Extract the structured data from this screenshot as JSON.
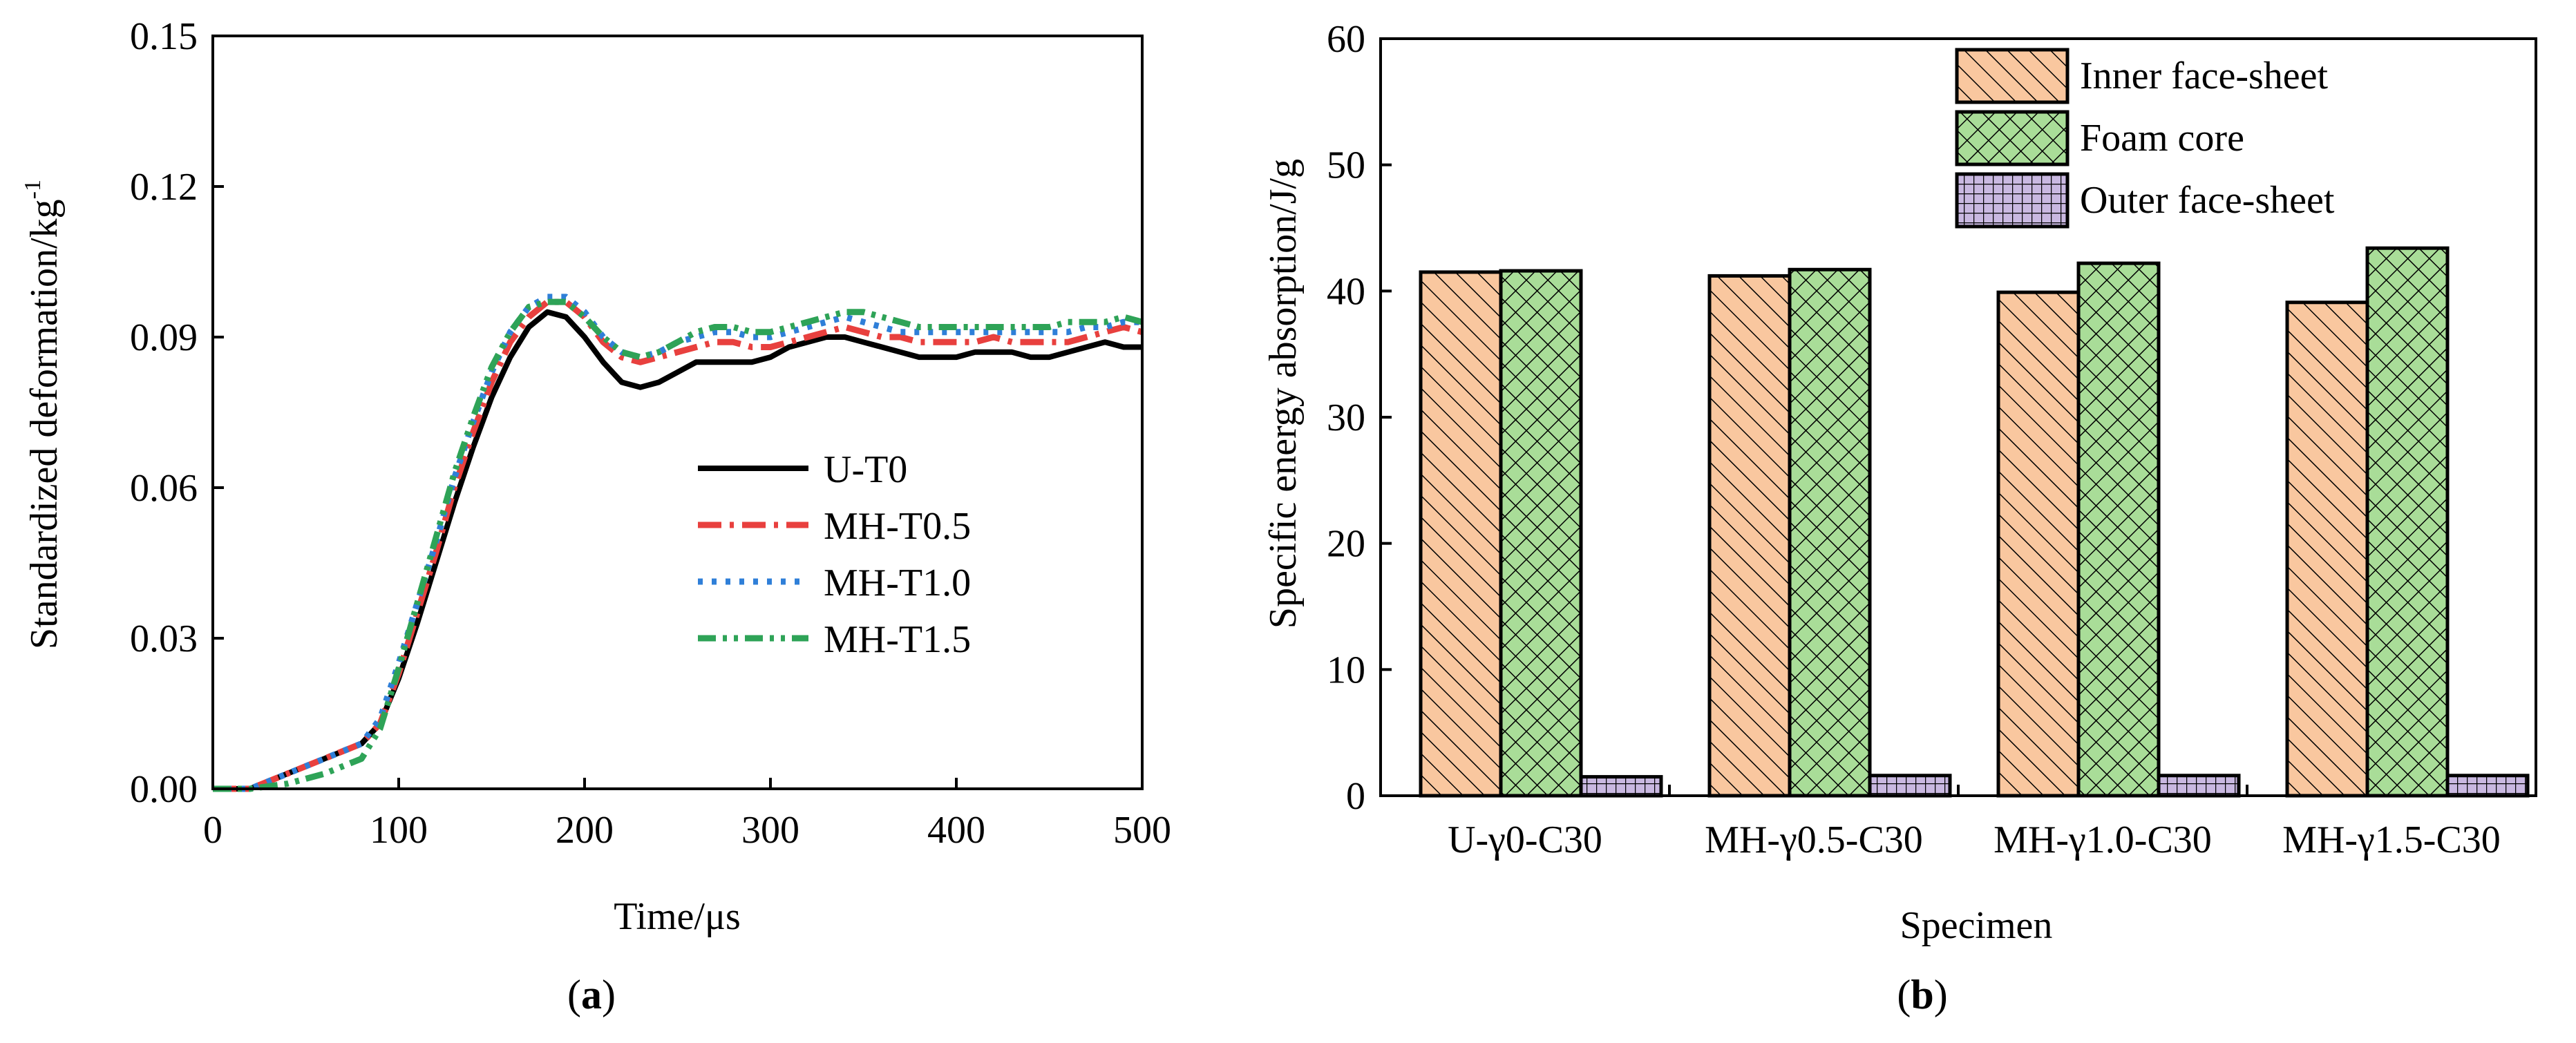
{
  "chart_data": [
    {
      "type": "line",
      "panel_label": "a",
      "xlabel": "Time/μs",
      "ylabel": "Standardized deformation/kg",
      "ylabel_superscript": "-1",
      "xlim": [
        0,
        500
      ],
      "ylim": [
        0,
        0.15
      ],
      "xticks": [
        0,
        100,
        200,
        300,
        400,
        500
      ],
      "yticks": [
        "0.00",
        "0.03",
        "0.06",
        "0.09",
        "0.12",
        "0.15"
      ],
      "grid": false,
      "legend_position": "center-right",
      "series": [
        {
          "name": "U-T0",
          "color": "#000000",
          "style": "solid",
          "x": [
            0,
            20,
            40,
            60,
            80,
            90,
            100,
            110,
            120,
            130,
            140,
            150,
            160,
            170,
            180,
            190,
            200,
            210,
            220,
            230,
            240,
            250,
            260,
            270,
            280,
            290,
            300,
            310,
            320,
            330,
            340,
            350,
            360,
            370,
            380,
            390,
            400,
            410,
            420,
            430,
            440,
            450,
            460,
            470,
            480,
            490,
            500
          ],
          "y": [
            0,
            0,
            0.003,
            0.006,
            0.009,
            0.013,
            0.022,
            0.033,
            0.045,
            0.057,
            0.068,
            0.078,
            0.086,
            0.092,
            0.095,
            0.094,
            0.09,
            0.085,
            0.081,
            0.08,
            0.081,
            0.083,
            0.085,
            0.085,
            0.085,
            0.085,
            0.086,
            0.088,
            0.089,
            0.09,
            0.09,
            0.089,
            0.088,
            0.087,
            0.086,
            0.086,
            0.086,
            0.087,
            0.087,
            0.087,
            0.086,
            0.086,
            0.087,
            0.088,
            0.089,
            0.088,
            0.088
          ]
        },
        {
          "name": "MH-T0.5",
          "color": "#e8403e",
          "style": "dash-dot",
          "x": [
            0,
            20,
            40,
            60,
            80,
            90,
            100,
            110,
            120,
            130,
            140,
            150,
            160,
            170,
            180,
            190,
            200,
            210,
            220,
            230,
            240,
            250,
            260,
            270,
            280,
            290,
            300,
            310,
            320,
            330,
            340,
            350,
            360,
            370,
            380,
            390,
            400,
            410,
            420,
            430,
            440,
            450,
            460,
            470,
            480,
            490,
            500
          ],
          "y": [
            0,
            0,
            0.003,
            0.006,
            0.009,
            0.013,
            0.023,
            0.035,
            0.047,
            0.06,
            0.071,
            0.081,
            0.089,
            0.094,
            0.097,
            0.097,
            0.094,
            0.089,
            0.086,
            0.085,
            0.086,
            0.087,
            0.088,
            0.089,
            0.089,
            0.088,
            0.088,
            0.089,
            0.09,
            0.091,
            0.092,
            0.091,
            0.09,
            0.09,
            0.089,
            0.089,
            0.089,
            0.089,
            0.09,
            0.089,
            0.089,
            0.089,
            0.089,
            0.09,
            0.091,
            0.092,
            0.091
          ]
        },
        {
          "name": "MH-T1.0",
          "color": "#2f7fd8",
          "style": "dotted",
          "x": [
            0,
            20,
            40,
            60,
            80,
            90,
            100,
            110,
            120,
            130,
            140,
            150,
            160,
            170,
            180,
            190,
            200,
            210,
            220,
            230,
            240,
            250,
            260,
            270,
            280,
            290,
            300,
            310,
            320,
            330,
            340,
            350,
            360,
            370,
            380,
            390,
            400,
            410,
            420,
            430,
            440,
            450,
            460,
            470,
            480,
            490,
            500
          ],
          "y": [
            0,
            0,
            0.003,
            0.006,
            0.009,
            0.014,
            0.025,
            0.037,
            0.049,
            0.062,
            0.073,
            0.083,
            0.091,
            0.096,
            0.098,
            0.098,
            0.095,
            0.09,
            0.087,
            0.086,
            0.087,
            0.089,
            0.09,
            0.091,
            0.091,
            0.09,
            0.09,
            0.091,
            0.092,
            0.093,
            0.094,
            0.093,
            0.092,
            0.091,
            0.091,
            0.091,
            0.091,
            0.091,
            0.091,
            0.091,
            0.091,
            0.091,
            0.091,
            0.092,
            0.092,
            0.093,
            0.093
          ]
        },
        {
          "name": "MH-T1.5",
          "color": "#2ea357",
          "style": "dash-dot-dot",
          "x": [
            0,
            20,
            40,
            60,
            80,
            90,
            100,
            110,
            120,
            130,
            140,
            150,
            160,
            170,
            180,
            190,
            200,
            210,
            220,
            230,
            240,
            250,
            260,
            270,
            280,
            290,
            300,
            310,
            320,
            330,
            340,
            350,
            360,
            370,
            380,
            390,
            400,
            410,
            420,
            430,
            440,
            450,
            460,
            470,
            480,
            490,
            500
          ],
          "y": [
            0,
            0,
            0.001,
            0.003,
            0.006,
            0.012,
            0.024,
            0.037,
            0.05,
            0.063,
            0.074,
            0.084,
            0.091,
            0.096,
            0.097,
            0.097,
            0.094,
            0.09,
            0.087,
            0.086,
            0.087,
            0.089,
            0.091,
            0.092,
            0.092,
            0.091,
            0.091,
            0.092,
            0.093,
            0.094,
            0.095,
            0.095,
            0.094,
            0.093,
            0.092,
            0.092,
            0.092,
            0.092,
            0.092,
            0.092,
            0.092,
            0.092,
            0.093,
            0.093,
            0.093,
            0.094,
            0.093
          ]
        }
      ]
    },
    {
      "type": "bar",
      "panel_label": "b",
      "xlabel": "Specimen",
      "ylabel": "Specific energy absorption/J/g",
      "ylim": [
        0,
        60
      ],
      "yticks": [
        "0",
        "10",
        "20",
        "30",
        "40",
        "50",
        "60"
      ],
      "grid": false,
      "legend_position": "top-right",
      "categories": [
        "U-γ0-C30",
        "MH-γ0.5-C30",
        "MH-γ1.0-C30",
        "MH-γ1.5-C30"
      ],
      "series": [
        {
          "name": "Inner face-sheet",
          "color": "#f9c79f",
          "pattern": "diagonal-hatch",
          "values": [
            41.5,
            41.2,
            39.9,
            39.1
          ]
        },
        {
          "name": "Foam core",
          "color": "#a9dd98",
          "pattern": "cross-hatch",
          "values": [
            41.6,
            41.7,
            42.2,
            43.4
          ]
        },
        {
          "name": "Outer face-sheet",
          "color": "#c9b8e1",
          "pattern": "grid",
          "values": [
            1.5,
            1.6,
            1.6,
            1.6
          ]
        }
      ]
    }
  ]
}
